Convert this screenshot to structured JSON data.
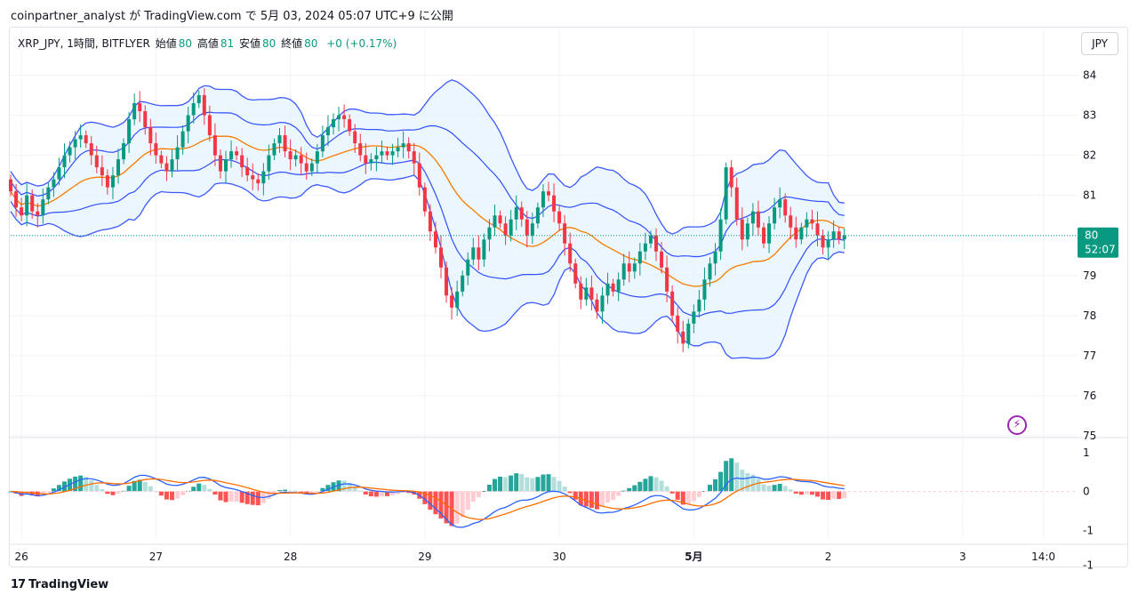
{
  "header": {
    "publisher_line": "coinpartner_analyst が TradingView.com で 5月 03, 2024 05:07 UTC+9 に公開"
  },
  "legend": {
    "symbol": "XRP_JPY, 1時間, BITFLYER",
    "open_label": "始値",
    "open_value": "80",
    "high_label": "高値",
    "high_value": "81",
    "low_label": "安値",
    "low_value": "80",
    "close_label": "終値",
    "close_value": "80",
    "change": "+0 (+0.17%)"
  },
  "currency_button": "JPY",
  "price_label": {
    "price": "80",
    "countdown": "52:07"
  },
  "footer": {
    "brand": "TradingView",
    "logo": "17"
  },
  "icons": {
    "alert": "lightning-bolt-icon"
  },
  "colors": {
    "up": "#089981",
    "down": "#f23645",
    "band": "#3d5afe",
    "basis": "#f57c00",
    "hist_up_strong": "#26a69a",
    "hist_up_weak": "#b2dfdb",
    "hist_down_strong": "#ff5252",
    "hist_down_weak": "#ffcdd2",
    "macd": "#2962ff",
    "signal": "#ff6d00"
  },
  "chart_data": [
    {
      "type": "candlestick",
      "title": "XRP_JPY, 1時間, BITFLYER",
      "ylim": [
        75,
        84.3
      ],
      "y_ticks": [
        "84",
        "83",
        "82",
        "81",
        "80",
        "79",
        "78",
        "77",
        "76",
        "75"
      ],
      "x_tick_labels": [
        "26",
        "27",
        "28",
        "29",
        "30",
        "5月",
        "2",
        "3",
        "14:0"
      ],
      "x_tick_index": [
        2,
        27,
        52,
        77,
        102,
        127,
        152,
        177,
        192
      ],
      "indicators": [
        "Bollinger Bands",
        "Basis"
      ],
      "current_price": 80,
      "close": [
        81.1,
        80.7,
        80.5,
        81.0,
        80.6,
        80.5,
        80.9,
        81.2,
        81.4,
        81.7,
        82.0,
        82.2,
        82.4,
        82.5,
        82.3,
        82.0,
        81.7,
        81.5,
        81.2,
        81.5,
        81.9,
        82.3,
        82.9,
        83.3,
        83.1,
        82.7,
        82.3,
        82.0,
        81.8,
        81.6,
        81.9,
        82.2,
        82.6,
        83.0,
        83.3,
        83.5,
        83.0,
        82.5,
        82.0,
        81.6,
        81.9,
        82.1,
        82.0,
        81.7,
        81.5,
        81.4,
        81.3,
        81.6,
        82.0,
        82.3,
        82.5,
        82.1,
        81.9,
        82.0,
        81.8,
        81.6,
        81.8,
        82.1,
        82.5,
        82.7,
        82.9,
        83.0,
        82.9,
        82.6,
        82.3,
        82.0,
        81.8,
        81.9,
        82.0,
        82.1,
        82.0,
        82.1,
        82.2,
        82.3,
        82.1,
        81.8,
        81.2,
        80.6,
        80.1,
        79.7,
        79.2,
        78.5,
        78.2,
        78.6,
        79.0,
        79.4,
        79.7,
        79.4,
        79.9,
        80.2,
        80.5,
        80.3,
        80.0,
        80.4,
        80.7,
        80.4,
        80.0,
        80.3,
        80.7,
        81.1,
        81.0,
        80.6,
        80.3,
        79.8,
        79.3,
        78.8,
        78.4,
        78.7,
        78.4,
        78.1,
        78.5,
        78.8,
        78.6,
        78.9,
        79.3,
        79.1,
        79.3,
        79.6,
        79.8,
        80.0,
        79.6,
        79.2,
        78.6,
        78.0,
        77.6,
        77.3,
        77.8,
        78.1,
        78.4,
        78.9,
        79.3,
        79.6,
        80.4,
        81.7,
        81.2,
        80.4,
        79.9,
        80.3,
        80.6,
        80.2,
        79.8,
        80.3,
        80.7,
        80.9,
        80.5,
        80.2,
        79.9,
        80.2,
        80.4,
        80.3,
        80.0,
        79.7,
        79.9,
        80.1,
        79.9,
        80.0
      ]
    },
    {
      "type": "macd",
      "ylim": [
        -1.2,
        1.2
      ],
      "y_ticks": [
        "1",
        "0",
        "-1",
        "-1"
      ]
    }
  ]
}
